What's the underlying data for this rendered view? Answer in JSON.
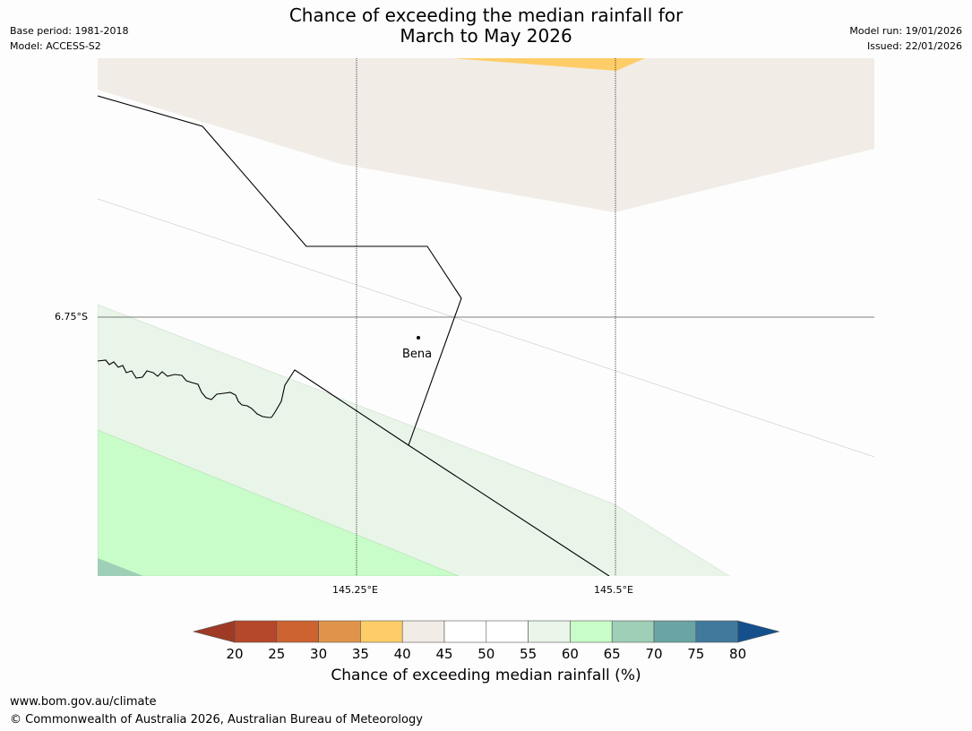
{
  "title_line1": "Chance of exceeding the median rainfall for",
  "title_line2": "March to May 2026",
  "base_period": "Base period: 1981-2018",
  "model": "Model: ACCESS-S2",
  "model_run": "Model run: 19/01/2026",
  "issued": "Issued: 22/01/2026",
  "map": {
    "lat_label": "6.75°S",
    "lon_labels": [
      "145.25°E",
      "145.5°E"
    ],
    "place": "Bena"
  },
  "colorbar": {
    "title": "Chance of exceeding median rainfall (%)",
    "ticks": [
      "20",
      "25",
      "30",
      "35",
      "40",
      "45",
      "50",
      "55",
      "60",
      "65",
      "70",
      "75",
      "80"
    ],
    "colors": [
      "#9e3a26",
      "#b5472a",
      "#cc6331",
      "#e0944a",
      "#fecd68",
      "#f1ece6",
      "#ffffff",
      "#ffffff",
      "#e9f5e8",
      "#c8fcc8",
      "#9ecfb7",
      "#6ba4a4",
      "#3f7a9c",
      "#15508c"
    ]
  },
  "footer": {
    "url": "www.bom.gov.au/climate",
    "copyright": "© Commonwealth of Australia 2026, Australian Bureau of Meteorology"
  }
}
